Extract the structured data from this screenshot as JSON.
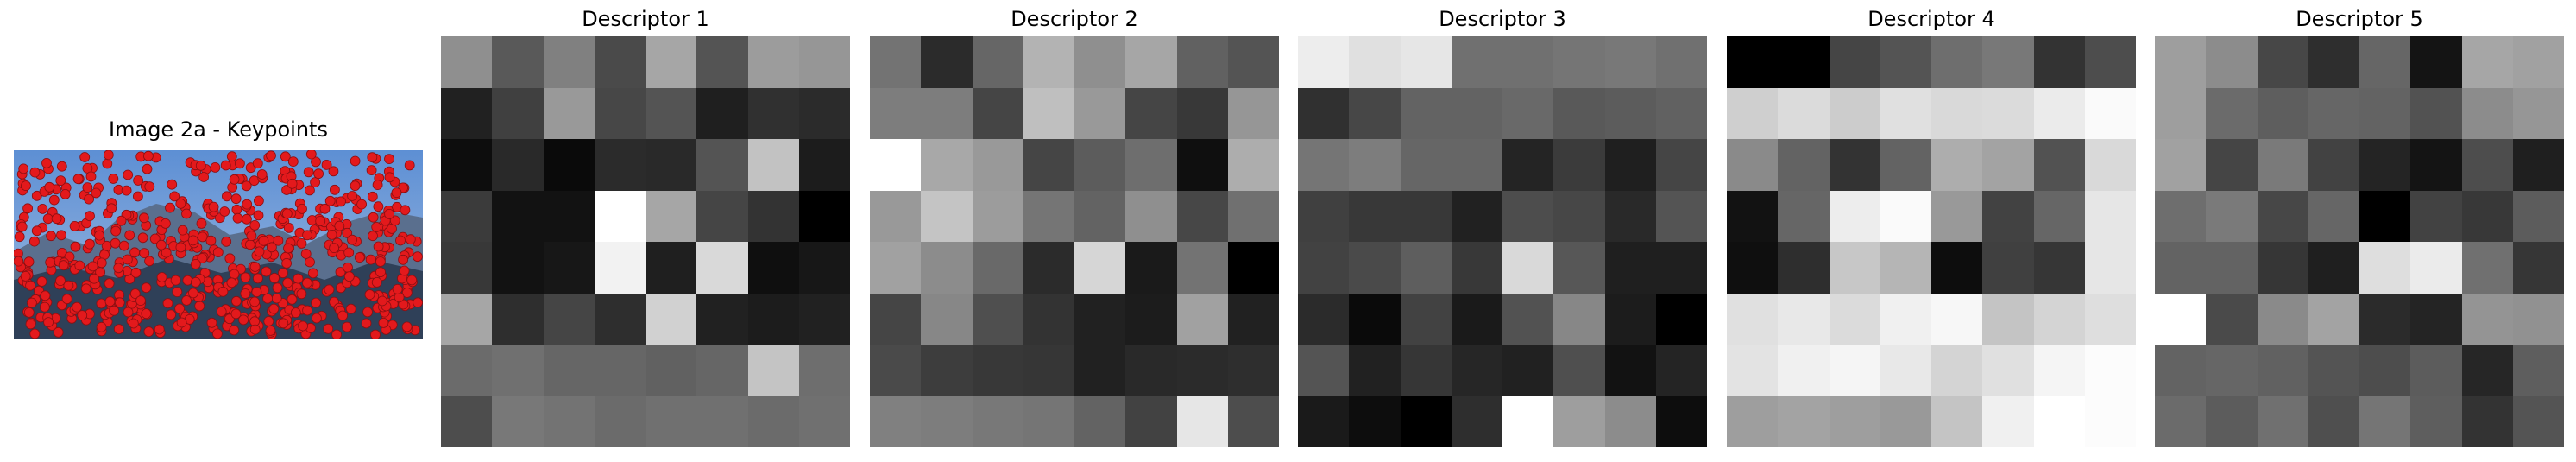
{
  "keypoint_panel": {
    "title": "Image 2a - Keypoints",
    "marker_color": "#e3191c"
  },
  "descriptors": [
    {
      "title": "Descriptor 1",
      "grid": [
        [
          0.56,
          0.35,
          0.5,
          0.29,
          0.65,
          0.33,
          0.61,
          0.59
        ],
        [
          0.13,
          0.25,
          0.6,
          0.28,
          0.33,
          0.12,
          0.19,
          0.17
        ],
        [
          0.05,
          0.16,
          0.04,
          0.17,
          0.16,
          0.33,
          0.76,
          0.11
        ],
        [
          0.23,
          0.07,
          0.07,
          1.0,
          0.65,
          0.27,
          0.2,
          0.0
        ],
        [
          0.22,
          0.07,
          0.09,
          0.95,
          0.12,
          0.85,
          0.06,
          0.09
        ],
        [
          0.65,
          0.18,
          0.27,
          0.18,
          0.82,
          0.13,
          0.11,
          0.13
        ],
        [
          0.42,
          0.44,
          0.4,
          0.4,
          0.38,
          0.4,
          0.77,
          0.43
        ],
        [
          0.3,
          0.47,
          0.45,
          0.42,
          0.44,
          0.44,
          0.42,
          0.44
        ]
      ]
    },
    {
      "title": "Descriptor 2",
      "grid": [
        [
          0.45,
          0.17,
          0.4,
          0.7,
          0.56,
          0.65,
          0.38,
          0.33
        ],
        [
          0.49,
          0.49,
          0.27,
          0.75,
          0.6,
          0.27,
          0.22,
          0.59
        ],
        [
          1.0,
          0.66,
          0.6,
          0.27,
          0.36,
          0.43,
          0.06,
          0.68
        ],
        [
          0.6,
          0.77,
          0.61,
          0.46,
          0.39,
          0.56,
          0.28,
          0.44
        ],
        [
          0.63,
          0.55,
          0.41,
          0.17,
          0.84,
          0.1,
          0.45,
          0.0
        ],
        [
          0.27,
          0.53,
          0.31,
          0.2,
          0.13,
          0.11,
          0.63,
          0.13
        ],
        [
          0.29,
          0.24,
          0.22,
          0.21,
          0.13,
          0.16,
          0.17,
          0.18
        ],
        [
          0.5,
          0.49,
          0.47,
          0.46,
          0.39,
          0.26,
          0.9,
          0.3
        ]
      ]
    },
    {
      "title": "Descriptor 3",
      "grid": [
        [
          0.93,
          0.88,
          0.9,
          0.44,
          0.44,
          0.46,
          0.47,
          0.44
        ],
        [
          0.19,
          0.28,
          0.39,
          0.39,
          0.41,
          0.35,
          0.36,
          0.38
        ],
        [
          0.46,
          0.49,
          0.4,
          0.4,
          0.14,
          0.23,
          0.12,
          0.27
        ],
        [
          0.25,
          0.22,
          0.22,
          0.13,
          0.3,
          0.28,
          0.16,
          0.33
        ],
        [
          0.26,
          0.29,
          0.37,
          0.22,
          0.85,
          0.34,
          0.12,
          0.12
        ],
        [
          0.17,
          0.04,
          0.26,
          0.1,
          0.32,
          0.53,
          0.11,
          0.0
        ],
        [
          0.33,
          0.13,
          0.21,
          0.15,
          0.13,
          0.31,
          0.07,
          0.14
        ],
        [
          0.1,
          0.05,
          0.0,
          0.18,
          1.0,
          0.62,
          0.55,
          0.05
        ]
      ]
    },
    {
      "title": "Descriptor 4",
      "grid": [
        [
          0.0,
          0.0,
          0.27,
          0.33,
          0.43,
          0.47,
          0.2,
          0.3
        ],
        [
          0.81,
          0.86,
          0.8,
          0.88,
          0.85,
          0.86,
          0.92,
          0.98
        ],
        [
          0.54,
          0.39,
          0.2,
          0.39,
          0.68,
          0.64,
          0.32,
          0.85
        ],
        [
          0.07,
          0.4,
          0.93,
          0.98,
          0.6,
          0.26,
          0.4,
          0.9
        ],
        [
          0.06,
          0.18,
          0.78,
          0.71,
          0.05,
          0.25,
          0.21,
          0.9
        ],
        [
          0.88,
          0.91,
          0.86,
          0.94,
          0.97,
          0.77,
          0.83,
          0.87
        ],
        [
          0.89,
          0.94,
          0.96,
          0.91,
          0.83,
          0.88,
          0.96,
          0.99
        ],
        [
          0.62,
          0.64,
          0.62,
          0.6,
          0.77,
          0.94,
          1.0,
          0.99
        ]
      ]
    },
    {
      "title": "Descriptor 5",
      "grid": [
        [
          0.62,
          0.55,
          0.28,
          0.18,
          0.4,
          0.08,
          0.65,
          0.63
        ],
        [
          0.62,
          0.42,
          0.37,
          0.4,
          0.39,
          0.32,
          0.55,
          0.59
        ],
        [
          0.63,
          0.27,
          0.48,
          0.26,
          0.14,
          0.08,
          0.3,
          0.12
        ],
        [
          0.43,
          0.48,
          0.28,
          0.4,
          0.0,
          0.26,
          0.22,
          0.36
        ],
        [
          0.39,
          0.39,
          0.21,
          0.12,
          0.87,
          0.92,
          0.44,
          0.21
        ],
        [
          1.0,
          0.29,
          0.54,
          0.64,
          0.17,
          0.14,
          0.58,
          0.57
        ],
        [
          0.39,
          0.4,
          0.38,
          0.33,
          0.3,
          0.36,
          0.15,
          0.37
        ],
        [
          0.42,
          0.36,
          0.44,
          0.31,
          0.46,
          0.37,
          0.2,
          0.33
        ]
      ]
    }
  ]
}
